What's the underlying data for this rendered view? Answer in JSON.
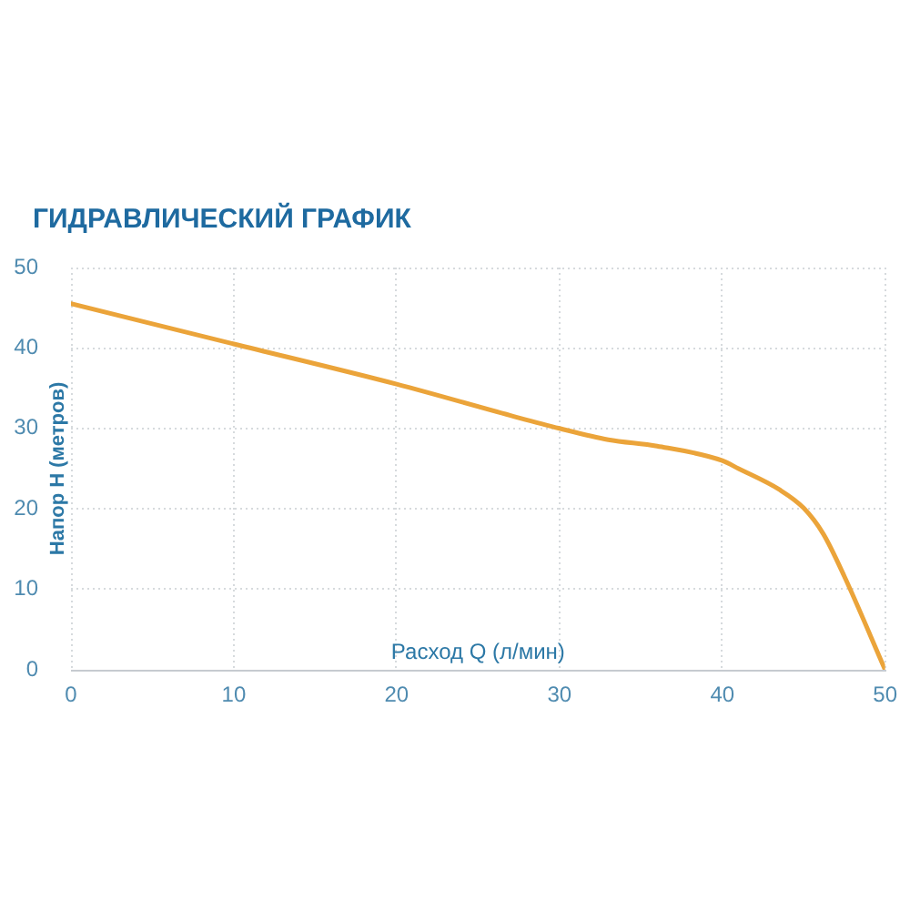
{
  "chart_data": {
    "type": "line",
    "title": "ГИДРАВЛИЧЕСКИЙ ГРАФИК",
    "xlabel": "Расход Q (л/мин)",
    "ylabel": "Напор H (метров)",
    "x": [
      0,
      10,
      20,
      27,
      30,
      33,
      36,
      40,
      41,
      43.5,
      45,
      46.2,
      47.5,
      50
    ],
    "values": [
      45.5,
      40.5,
      35.5,
      31.6,
      30,
      28.6,
      27.8,
      26,
      25,
      22.4,
      20.1,
      16.9,
      11.6,
      0
    ],
    "color": "#eba43a",
    "marker": "none",
    "line_style": "solid",
    "xlim": [
      0,
      50
    ],
    "ylim": [
      0,
      50
    ],
    "xticks": [
      0,
      10,
      20,
      30,
      40,
      50
    ],
    "yticks": [
      0,
      10,
      20,
      30,
      40,
      50
    ],
    "grid": true
  }
}
